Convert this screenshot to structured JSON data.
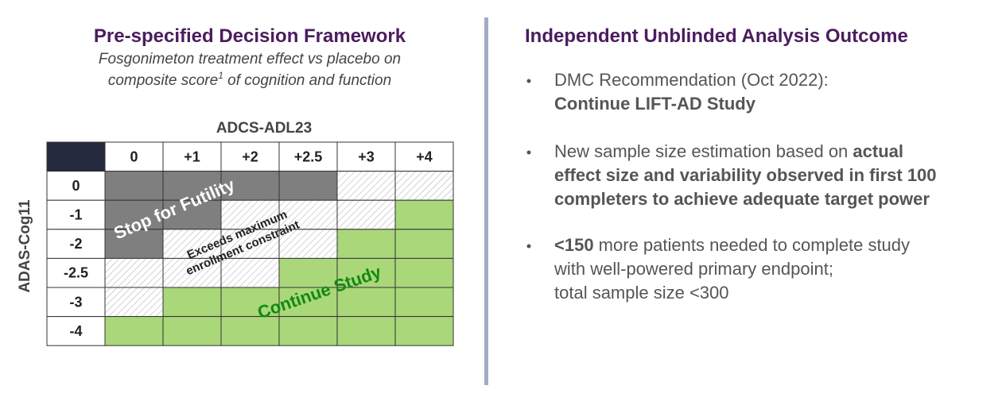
{
  "left": {
    "title": "Pre-specified Decision Framework",
    "subtitle": {
      "line1": "Fosgonimeton treatment effect vs placebo on",
      "line2_start": "composite score",
      "footnote": "1",
      "line2_end": " of cognition and function"
    },
    "column_axis_label": "ADCS-ADL23",
    "row_axis_label": "ADAS-Cog11",
    "columns": [
      "0",
      "+1",
      "+2",
      "+2.5",
      "+3",
      "+4"
    ],
    "rows": [
      "0",
      "-1",
      "-2",
      "-2.5",
      "-3",
      "-4"
    ],
    "regions": {
      "futility": "Stop for Futility",
      "exceeds": [
        "Exceeds maximum",
        "enrollment constraint"
      ],
      "continue": "Continue Study"
    }
  },
  "right": {
    "title": "Independent Unblinded Analysis Outcome",
    "bullets": [
      {
        "lines": [
          [
            {
              "text": "DMC Recommendation (Oct 2022):",
              "bold": false
            }
          ],
          [
            {
              "text": "Continue LIFT-AD Study",
              "bold": true
            }
          ]
        ]
      },
      {
        "lines": [
          [
            {
              "text": "New sample size estimation based on ",
              "bold": false
            },
            {
              "text": "actual",
              "bold": true
            }
          ],
          [
            {
              "text": "effect size and variability observed in first 100",
              "bold": true
            }
          ],
          [
            {
              "text": "completers to achieve adequate target power",
              "bold": true
            }
          ]
        ]
      },
      {
        "lines": [
          [
            {
              "text": "<150",
              "bold": true
            },
            {
              "text": " more patients needed to complete study",
              "bold": false
            }
          ],
          [
            {
              "text": "with well-powered primary endpoint;",
              "bold": false
            }
          ],
          [
            {
              "text": "total sample size <300",
              "bold": false
            }
          ]
        ]
      }
    ]
  }
}
